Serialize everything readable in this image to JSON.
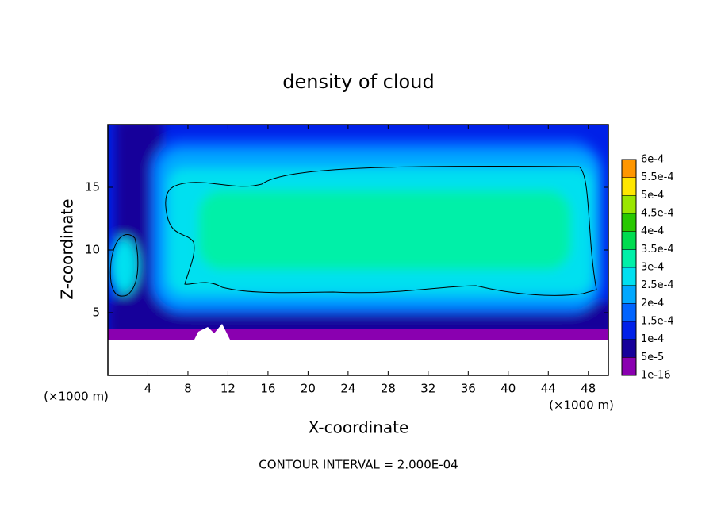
{
  "chart_data": {
    "type": "contour",
    "title": "density of cloud",
    "xlabel": "X-coordinate",
    "ylabel": "Z-coordinate",
    "x_unit": "(×1000 m)",
    "y_unit": "(×1000 m)",
    "annotation": "CONTOUR INTERVAL = 2.000E-04",
    "xlim": [
      0,
      50
    ],
    "xticks": [
      4,
      8,
      12,
      16,
      20,
      24,
      28,
      32,
      36,
      40,
      44,
      48
    ],
    "ylim": [
      0,
      20
    ],
    "yticks": [
      5,
      10,
      15
    ],
    "colorbar": {
      "levels": [
        {
          "value": 1e-16,
          "label": "1e-16"
        },
        {
          "value": 5e-05,
          "label": "5e-5"
        },
        {
          "value": 0.0001,
          "label": "1e-4"
        },
        {
          "value": 0.00015,
          "label": "1.5e-4"
        },
        {
          "value": 0.0002,
          "label": "2e-4"
        },
        {
          "value": 0.00025,
          "label": "2.5e-4"
        },
        {
          "value": 0.0003,
          "label": "3e-4"
        },
        {
          "value": 0.00035,
          "label": "3.5e-4"
        },
        {
          "value": 0.0004,
          "label": "4e-4"
        },
        {
          "value": 0.00045,
          "label": "4.5e-4"
        },
        {
          "value": 0.0005,
          "label": "5e-4"
        },
        {
          "value": 0.00055,
          "label": "5.5e-4"
        },
        {
          "value": 0.0006,
          "label": "6e-4"
        }
      ],
      "colors": [
        "#8a00b0",
        "#16009a",
        "#0020e8",
        "#0064ff",
        "#00a8ff",
        "#00e0f0",
        "#00f0a8",
        "#00dc50",
        "#28c800",
        "#9ae600",
        "#ffe600",
        "#ff9600",
        "#ff3c1e",
        "#ff8c8c"
      ]
    }
  }
}
